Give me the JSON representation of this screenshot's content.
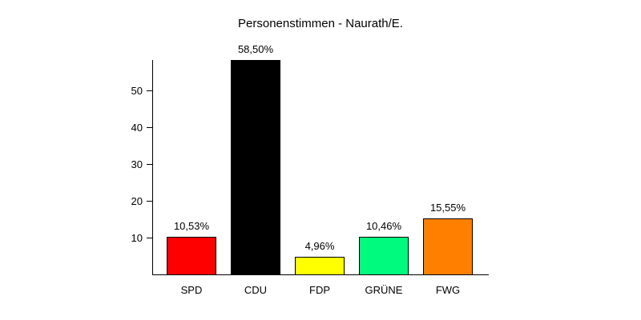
{
  "chart_data": {
    "type": "bar",
    "title": "Personenstimmen - Naurath/E.",
    "categories": [
      "SPD",
      "CDU",
      "FDP",
      "GRÜNE",
      "FWG"
    ],
    "values": [
      10.53,
      58.5,
      4.96,
      10.46,
      15.55
    ],
    "bar_labels": [
      "10,53%",
      "58,50%",
      "4,96%",
      "10,46%",
      "15,55%"
    ],
    "bar_colors": [
      "#ff0000",
      "#000000",
      "#ffff00",
      "#00fa7e",
      "#ff8000"
    ],
    "yticks": [
      10,
      20,
      30,
      40,
      50
    ],
    "ylim": [
      0,
      58.5
    ],
    "xlabel": "",
    "ylabel": "",
    "grid": false,
    "legend_position": "none",
    "background_color": "#ffffff",
    "axis_color": "#000000",
    "text_color": "#000000"
  }
}
